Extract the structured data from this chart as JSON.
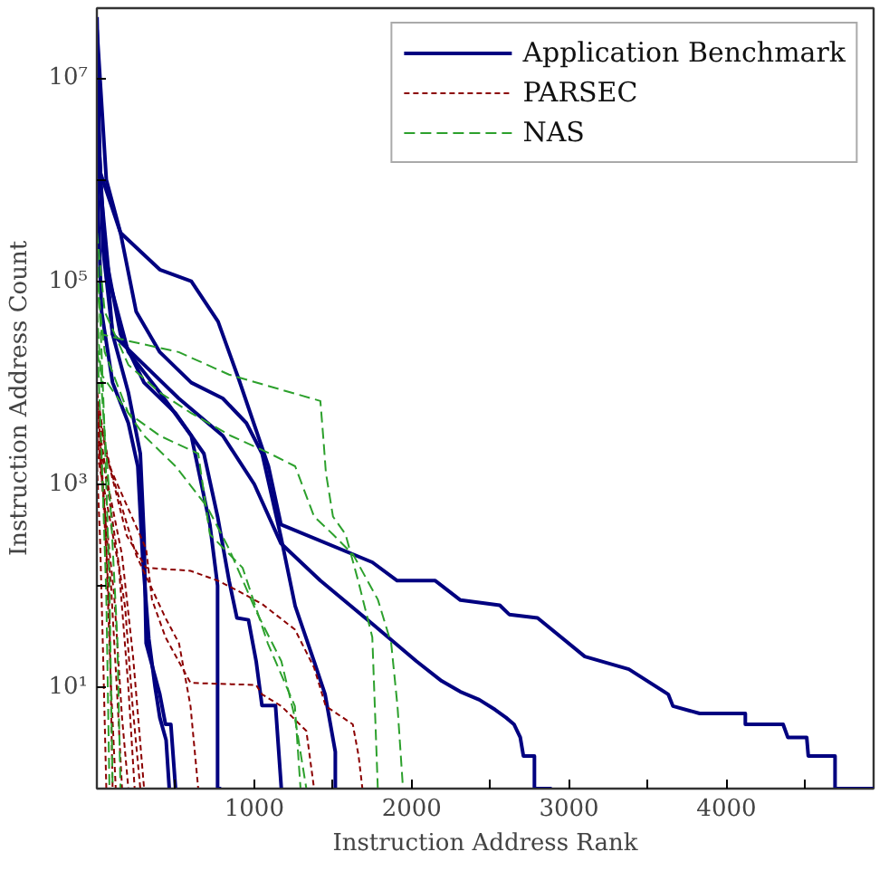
{
  "chart_data": {
    "type": "line",
    "xlabel": "Instruction Address Rank",
    "ylabel": "Instruction Address Count",
    "log": "y",
    "grid": false,
    "legend": "top right",
    "xlim": [
      0,
      4935
    ],
    "ylim": [
      1,
      49000000
    ],
    "xticks": [
      {
        "value": 500,
        "label": null
      },
      1000,
      {
        "value": 1500,
        "label": null
      },
      2000,
      {
        "value": 2500,
        "label": null
      },
      3000,
      {
        "value": 3500,
        "label": null
      },
      4000,
      {
        "value": 4500,
        "label": null
      }
    ],
    "yticks": [
      {
        "value": 10,
        "label": "10¹"
      },
      {
        "value": 100,
        "label": null
      },
      {
        "value": 1000,
        "label": "10³"
      },
      {
        "value": 10000,
        "label": null
      },
      {
        "value": 100000,
        "label": "10⁵"
      },
      {
        "value": 1000000,
        "label": null
      },
      {
        "value": 10000000,
        "label": "10⁷"
      }
    ],
    "series": [
      {
        "name": "Application Benchmark",
        "color": "#000080",
        "line_style": "solid",
        "x": [
          1,
          20,
          150,
          400,
          600,
          770,
          900,
          1090,
          1170,
          1750,
          1908,
          2150,
          2310,
          2560,
          2620,
          2800,
          3100,
          3380,
          3630,
          3660,
          3830,
          4120,
          4120,
          4360,
          4390,
          4510,
          4520,
          4690,
          4690,
          4935
        ],
        "values": [
          40000000,
          1200000,
          300000,
          130000,
          100000,
          40000,
          11000,
          1500,
          400,
          170,
          112,
          112,
          72,
          64,
          52,
          48,
          20,
          15,
          8.5,
          6.5,
          5.5,
          5.5,
          4.3,
          4.3,
          3.2,
          3.2,
          2.1,
          2.1,
          1,
          1
        ]
      },
      {
        "color": "#000080",
        "line_style": "solid",
        "x": [
          1,
          100,
          300,
          520,
          800,
          1000,
          1170,
          1420,
          1750,
          2030,
          2190,
          2310,
          2430,
          2530,
          2600,
          2650,
          2690,
          2710,
          2780,
          2780,
          2890
        ],
        "values": [
          2000000,
          30000,
          15000,
          7000,
          3000,
          1000,
          260,
          112,
          42,
          18,
          11.5,
          9,
          7.5,
          6,
          5,
          4.3,
          3.2,
          2.1,
          2.1,
          1,
          1
        ]
      },
      {
        "color": "#000080",
        "line_style": "solid",
        "x": [
          1,
          60,
          150,
          250,
          400,
          600,
          800,
          950,
          1050,
          1170,
          1260,
          1380,
          1450,
          1515,
          1515
        ],
        "values": [
          30000000,
          1000000,
          300000,
          50000,
          20000,
          10000,
          7000,
          4000,
          2000,
          300,
          63,
          18,
          8.5,
          2.3,
          1
        ]
      },
      {
        "color": "#000080",
        "line_style": "solid",
        "x": [
          1,
          50,
          150,
          300,
          500,
          680,
          767,
          840,
          890,
          963,
          1012,
          1049,
          1135,
          1172
        ],
        "values": [
          5000000,
          200000,
          30000,
          10000,
          5000,
          2000,
          480,
          112,
          48,
          46,
          18,
          6.6,
          6.6,
          1
        ]
      },
      {
        "color": "#000080",
        "line_style": "solid",
        "x": [
          1,
          80,
          200,
          400,
          600,
          718,
          767,
          767,
          790
        ],
        "values": [
          2000000,
          100000,
          20000,
          8000,
          3000,
          400,
          100,
          1,
          1
        ]
      },
      {
        "color": "#000080",
        "line_style": "solid",
        "x": [
          1,
          40,
          100,
          200,
          276,
          300,
          313,
          400,
          436,
          470,
          500
        ],
        "values": [
          8000000,
          200000,
          30000,
          8000,
          2000,
          300,
          27,
          8.5,
          4.3,
          4.3,
          1
        ]
      },
      {
        "color": "#000080",
        "line_style": "solid",
        "x": [
          1,
          30,
          100,
          200,
          260,
          290,
          330,
          370,
          400,
          440,
          460
        ],
        "values": [
          1000000,
          50000,
          10000,
          4000,
          1500,
          200,
          30,
          10,
          5,
          3,
          1
        ]
      },
      {
        "name": "PARSEC",
        "color": "#8b0000",
        "line_style": "dotted",
        "x": [
          1,
          60,
          190,
          313,
          595,
          767,
          890,
          1049,
          1258,
          1380,
          1454,
          1626,
          1663,
          1687
        ],
        "values": [
          8000,
          2000,
          310,
          150,
          140,
          112,
          90,
          66,
          37,
          15.6,
          6.5,
          4.3,
          2.1,
          1
        ]
      },
      {
        "color": "#8b0000",
        "line_style": "dotted",
        "x": [
          1,
          80,
          313,
          350,
          436,
          595,
          1012,
          1049,
          1172,
          1331,
          1380
        ],
        "values": [
          6000,
          1500,
          230,
          73,
          31,
          11,
          10.5,
          8.5,
          6.5,
          3.7,
          1
        ]
      },
      {
        "color": "#8b0000",
        "line_style": "dotted",
        "x": [
          1,
          100,
          250,
          436,
          522,
          595,
          644
        ],
        "values": [
          5000,
          1200,
          200,
          48,
          27,
          6.5,
          1
        ]
      },
      {
        "color": "#8b0000",
        "line_style": "dotted",
        "x": [
          1,
          80,
          180,
          227,
          276
        ],
        "values": [
          4000,
          700,
          60,
          6.5,
          1
        ]
      },
      {
        "color": "#8b0000",
        "line_style": "dotted",
        "x": [
          1,
          20,
          50,
          80,
          100
        ],
        "values": [
          8000,
          3000,
          500,
          50,
          1
        ]
      },
      {
        "color": "#8b0000",
        "line_style": "dotted",
        "x": [
          1,
          30,
          60,
          90,
          120
        ],
        "values": [
          6000,
          1500,
          200,
          10,
          1
        ]
      },
      {
        "color": "#8b0000",
        "line_style": "dotted",
        "x": [
          1,
          40,
          90,
          130,
          160
        ],
        "values": [
          4000,
          800,
          100,
          8,
          1
        ]
      },
      {
        "color": "#8b0000",
        "line_style": "dotted",
        "x": [
          1,
          50,
          110,
          160,
          200
        ],
        "values": [
          3000,
          600,
          80,
          5,
          1
        ]
      },
      {
        "color": "#8b0000",
        "line_style": "dotted",
        "x": [
          1,
          60,
          140,
          200,
          240
        ],
        "values": [
          2000,
          700,
          150,
          10,
          1
        ]
      },
      {
        "color": "#8b0000",
        "line_style": "dotted",
        "x": [
          1,
          20,
          40,
          60
        ],
        "values": [
          1500,
          300,
          20,
          1
        ]
      },
      {
        "color": "#8b0000",
        "line_style": "dotted",
        "x": [
          1,
          70,
          160,
          230,
          300
        ],
        "values": [
          5000,
          1000,
          200,
          20,
          1
        ]
      },
      {
        "name": "NAS",
        "color": "#2ca02c",
        "line_style": "dashed",
        "x": [
          1,
          30,
          190,
          520,
          840,
          1420,
          1440,
          1455,
          1500,
          1580,
          1660,
          1750,
          1785
        ],
        "values": [
          100000,
          30000,
          26000,
          20000,
          12000,
          6600,
          2700,
          1300,
          480,
          320,
          112,
          31,
          1
        ]
      },
      {
        "color": "#2ca02c",
        "line_style": "dashed",
        "x": [
          1,
          50,
          200,
          400,
          600,
          850,
          1100,
          1260,
          1380,
          1500,
          1630,
          1785,
          1870,
          1910,
          1945
        ],
        "values": [
          300000,
          50000,
          15000,
          8000,
          5000,
          3000,
          2000,
          1500,
          480,
          320,
          200,
          73,
          27,
          6.5,
          1
        ]
      },
      {
        "color": "#2ca02c",
        "line_style": "dashed",
        "x": [
          1,
          50,
          200,
          400,
          644,
          718,
          926,
          1086,
          1258,
          1294
        ],
        "values": [
          100000,
          20000,
          5000,
          3000,
          2000,
          320,
          150,
          27,
          6.5,
          1
        ]
      },
      {
        "color": "#2ca02c",
        "line_style": "dashed",
        "x": [
          1,
          30,
          300,
          500,
          700,
          840,
          1012,
          1172,
          1258,
          1331
        ],
        "values": [
          20000,
          12000,
          3000,
          1500,
          600,
          230,
          56,
          18,
          5,
          1
        ]
      },
      {
        "color": "#2ca02c",
        "line_style": "dashed",
        "x": [
          1,
          20,
          50,
          80,
          100
        ],
        "values": [
          200000,
          50000,
          3000,
          100,
          1
        ]
      },
      {
        "color": "#2ca02c",
        "line_style": "dashed",
        "x": [
          1,
          40,
          90,
          130,
          150
        ],
        "values": [
          50000,
          5000,
          500,
          30,
          1
        ]
      },
      {
        "color": "#2ca02c",
        "line_style": "dashed",
        "x": [
          1,
          30,
          60,
          80
        ],
        "values": [
          30000,
          2000,
          80,
          1
        ]
      }
    ]
  }
}
